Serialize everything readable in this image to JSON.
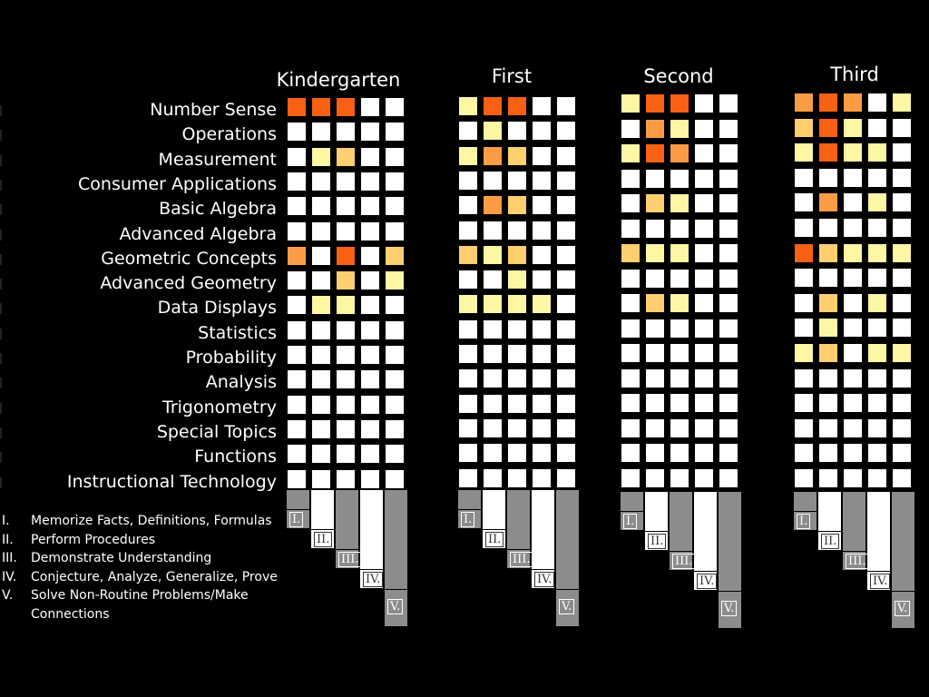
{
  "colors": {
    "empty": "#ffffff",
    "1": "#fdf6a3",
    "2": "#fdcf6f",
    "3": "#fb9c45",
    "4": "#f86014",
    "key_grey": "#8c8c8c"
  },
  "topics": [
    "Number Sense",
    "Operations",
    "Measurement",
    "Consumer Applications",
    "Basic Algebra",
    "Advanced Algebra",
    "Geometric Concepts",
    "Advanced Geometry",
    "Data Displays",
    "Statistics",
    "Probability",
    "Analysis",
    "Trigonometry",
    "Special Topics",
    "Functions",
    "Instructional Technology"
  ],
  "grades": [
    {
      "title": "Kindergarten",
      "cells": [
        [
          4,
          4,
          4,
          0,
          0
        ],
        [
          0,
          0,
          0,
          0,
          0
        ],
        [
          0,
          1,
          2,
          0,
          0
        ],
        [
          0,
          0,
          0,
          0,
          0
        ],
        [
          0,
          0,
          0,
          0,
          0
        ],
        [
          0,
          0,
          0,
          0,
          0
        ],
        [
          3,
          0,
          4,
          0,
          2
        ],
        [
          0,
          0,
          2,
          0,
          1
        ],
        [
          0,
          1,
          1,
          0,
          0
        ],
        [
          0,
          0,
          0,
          0,
          0
        ],
        [
          0,
          0,
          0,
          0,
          0
        ],
        [
          0,
          0,
          0,
          0,
          0
        ],
        [
          0,
          0,
          0,
          0,
          0
        ],
        [
          0,
          0,
          0,
          0,
          0
        ],
        [
          0,
          0,
          0,
          0,
          0
        ],
        [
          0,
          0,
          0,
          0,
          0
        ]
      ]
    },
    {
      "title": "First",
      "cells": [
        [
          1,
          4,
          4,
          0,
          0
        ],
        [
          0,
          1,
          0,
          0,
          0
        ],
        [
          1,
          3,
          2,
          0,
          0
        ],
        [
          0,
          0,
          0,
          0,
          0
        ],
        [
          0,
          3,
          2,
          0,
          0
        ],
        [
          0,
          0,
          0,
          0,
          0
        ],
        [
          2,
          1,
          2,
          0,
          0
        ],
        [
          0,
          0,
          1,
          0,
          0
        ],
        [
          1,
          1,
          1,
          1,
          0
        ],
        [
          0,
          0,
          0,
          0,
          0
        ],
        [
          0,
          0,
          0,
          0,
          0
        ],
        [
          0,
          0,
          0,
          0,
          0
        ],
        [
          0,
          0,
          0,
          0,
          0
        ],
        [
          0,
          0,
          0,
          0,
          0
        ],
        [
          0,
          0,
          0,
          0,
          0
        ],
        [
          0,
          0,
          0,
          0,
          0
        ]
      ]
    },
    {
      "title": "Second",
      "cells": [
        [
          1,
          4,
          4,
          0,
          0
        ],
        [
          0,
          3,
          1,
          0,
          0
        ],
        [
          1,
          4,
          3,
          0,
          0
        ],
        [
          0,
          0,
          0,
          0,
          0
        ],
        [
          0,
          2,
          1,
          0,
          0
        ],
        [
          0,
          0,
          0,
          0,
          0
        ],
        [
          2,
          1,
          1,
          0,
          0
        ],
        [
          0,
          0,
          0,
          0,
          0
        ],
        [
          0,
          2,
          1,
          0,
          0
        ],
        [
          0,
          0,
          0,
          0,
          0
        ],
        [
          0,
          0,
          0,
          0,
          0
        ],
        [
          0,
          0,
          0,
          0,
          0
        ],
        [
          0,
          0,
          0,
          0,
          0
        ],
        [
          0,
          0,
          0,
          0,
          0
        ],
        [
          0,
          0,
          0,
          0,
          0
        ],
        [
          0,
          0,
          0,
          0,
          0
        ]
      ]
    },
    {
      "title": "Third",
      "cells": [
        [
          3,
          4,
          3,
          0,
          1
        ],
        [
          2,
          4,
          1,
          0,
          0
        ],
        [
          1,
          4,
          1,
          1,
          0
        ],
        [
          0,
          0,
          0,
          0,
          0
        ],
        [
          0,
          3,
          0,
          1,
          0
        ],
        [
          0,
          0,
          0,
          0,
          0
        ],
        [
          4,
          2,
          1,
          1,
          1
        ],
        [
          0,
          0,
          0,
          0,
          0
        ],
        [
          0,
          2,
          0,
          1,
          0
        ],
        [
          0,
          1,
          0,
          0,
          0
        ],
        [
          1,
          2,
          0,
          1,
          1
        ],
        [
          0,
          0,
          0,
          0,
          0
        ],
        [
          0,
          0,
          0,
          0,
          0
        ],
        [
          0,
          0,
          0,
          0,
          0
        ],
        [
          0,
          0,
          0,
          0,
          0
        ],
        [
          0,
          0,
          0,
          0,
          0
        ]
      ]
    }
  ],
  "key_labels": [
    "I.",
    "II.",
    "III.",
    "IV.",
    "V."
  ],
  "legend": [
    {
      "num": "I.",
      "text": "Memorize Facts, Definitions, Formulas"
    },
    {
      "num": "II.",
      "text": "Perform Procedures"
    },
    {
      "num": "III.",
      "text": "Demonstrate Understanding"
    },
    {
      "num": "IV.",
      "text": "Conjecture, Analyze, Generalize, Prove"
    },
    {
      "num": "V.",
      "text": " Solve Non-Routine Problems/Make Connections"
    }
  ]
}
